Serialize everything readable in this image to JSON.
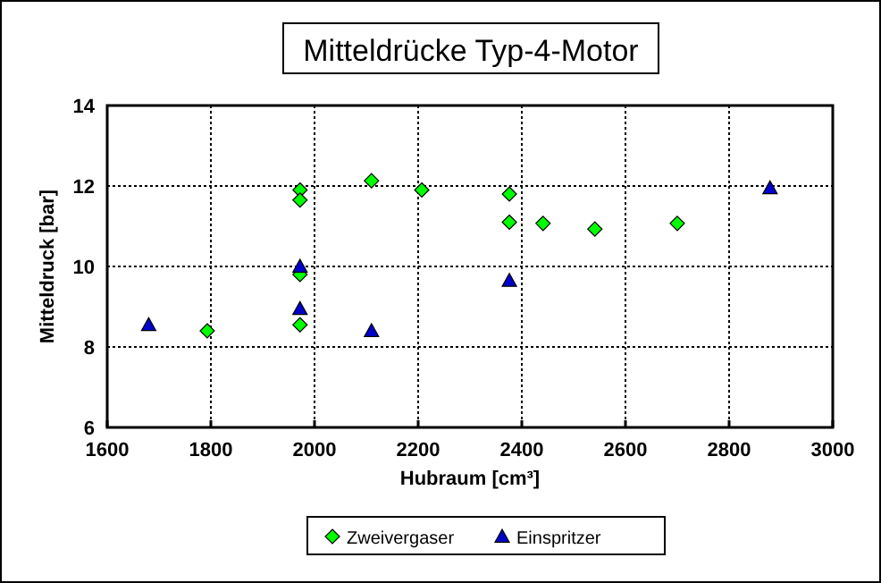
{
  "chart_data": {
    "type": "scatter",
    "title": "Mitteldrücke Typ-4-Motor",
    "xlabel": "Hubraum [cm³]",
    "ylabel": "Mitteldruck [bar]",
    "xlim": [
      1600,
      3000
    ],
    "xticks": [
      1600,
      1800,
      2000,
      2200,
      2400,
      2600,
      2800,
      3000
    ],
    "ylim": [
      6,
      14
    ],
    "yticks": [
      6,
      8,
      10,
      12,
      14
    ],
    "grid": true,
    "legend": "bottom",
    "series": [
      {
        "name": "Zweivergaser",
        "color": "#00ff00",
        "marker": "diamond",
        "x": [
          1793,
          1972,
          1972,
          1972,
          1972,
          2110,
          2207,
          2376,
          2376,
          2441,
          2541,
          2700
        ],
        "values": [
          8.4,
          11.9,
          11.65,
          9.8,
          8.55,
          12.13,
          11.9,
          11.8,
          11.1,
          11.07,
          10.93,
          11.07
        ]
      },
      {
        "name": "Einspritzer",
        "color": "#0000cc",
        "marker": "triangle",
        "x": [
          1680,
          1972,
          1972,
          2110,
          2376,
          2879
        ],
        "values": [
          8.55,
          10.0,
          8.95,
          8.4,
          9.65,
          11.95
        ]
      }
    ]
  }
}
